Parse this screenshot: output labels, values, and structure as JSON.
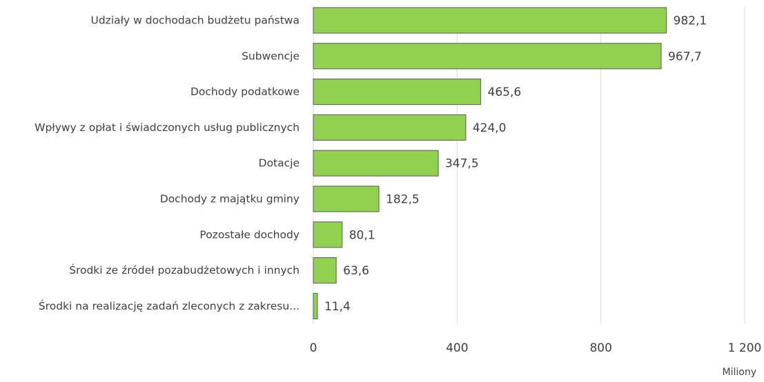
{
  "chart_data": {
    "type": "bar",
    "orientation": "horizontal",
    "categories": [
      "Udziały w dochodach budżetu państwa",
      "Subwencje",
      "Dochody podatkowe",
      "Wpływy z opłat i świadczonych usług publicznych",
      "Dotacje",
      "Dochody z majątku gminy",
      "Pozostałe dochody",
      "Środki ze źródeł pozabudżetowych i innych",
      "Środki na realizację zadań zleconych z zakresu..."
    ],
    "values": [
      982.1,
      967.7,
      465.6,
      424.0,
      347.5,
      182.5,
      80.1,
      63.6,
      11.4
    ],
    "value_labels": [
      "982,1",
      "967,7",
      "465,6",
      "424,0",
      "347,5",
      "182,5",
      "80,1",
      "63,6",
      "11,4"
    ],
    "xlim": [
      0,
      1200
    ],
    "x_ticks": [
      0,
      400,
      800,
      1200
    ],
    "x_tick_labels": [
      "0",
      "400",
      "800",
      "1 200"
    ],
    "unit_label": "Miliony",
    "title": "",
    "xlabel": "",
    "ylabel": "",
    "grid": "vertical",
    "legend": "none",
    "bar_color": "#92d050",
    "bar_edge_color": "#6b6b6b"
  }
}
